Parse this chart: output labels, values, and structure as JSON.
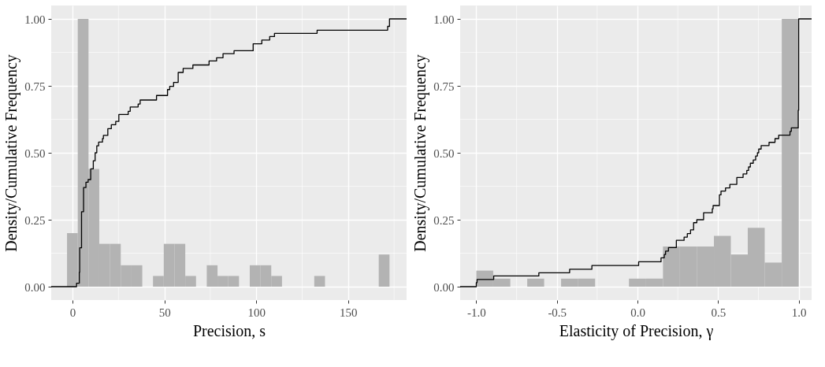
{
  "chart_data": [
    {
      "type": "histogram",
      "xlabel": "Precision, s",
      "ylabel": "Density/Cumulative Frequency",
      "xlim": [
        -11.6,
        181.8
      ],
      "xticks": [
        0,
        50,
        100,
        150
      ],
      "ylim": [
        -0.05,
        1.05
      ],
      "yticks": [
        {
          "value": 0,
          "label": "0.00"
        },
        {
          "value": 0.25,
          "label": "0.25"
        },
        {
          "value": 0.5,
          "label": "0.50"
        },
        {
          "value": 0.75,
          "label": "0.75"
        },
        {
          "value": 1,
          "label": "1.00"
        }
      ],
      "grid": true,
      "series": [
        {
          "type": "histogram",
          "color": "#b3b3b3",
          "bins": [
            -3.0,
            2.85,
            8.7,
            14.55,
            20.4,
            26.25,
            32.1,
            37.95,
            43.8,
            49.65,
            55.5,
            61.35,
            67.2,
            73.05,
            78.9,
            84.75,
            90.6,
            96.45,
            102.3,
            108.15,
            114.0,
            119.85,
            125.7,
            131.55,
            137.4,
            143.25,
            149.1,
            154.95,
            160.8,
            166.65,
            172.5
          ],
          "values": [
            0.2,
            1.0,
            0.44,
            0.16,
            0.16,
            0.08,
            0.08,
            0,
            0.04,
            0.16,
            0.16,
            0.04,
            0,
            0.08,
            0.04,
            0.04,
            0,
            0.08,
            0.08,
            0.04,
            0,
            0,
            0,
            0.04,
            0,
            0,
            0,
            0,
            0,
            0.12
          ]
        },
        {
          "type": "step",
          "color": "#000000",
          "x": [
            -11.6,
            2.2,
            3.7,
            3.9,
            4.9,
            6.0,
            7.3,
            8.5,
            9.9,
            11.3,
            12.3,
            13.2,
            14.2,
            16.3,
            16.8,
            19.2,
            21.1,
            23.5,
            25.2,
            30.3,
            31.4,
            35.7,
            36.8,
            45.7,
            51.7,
            52.9,
            55.0,
            57.5,
            60.2,
            65.5,
            74.3,
            78.4,
            81.9,
            87.9,
            98.3,
            103.0,
            107.3,
            109.9,
            133.1,
            171.5,
            172.5,
            181.8
          ],
          "values": [
            0,
            0.013,
            0.054,
            0.145,
            0.28,
            0.37,
            0.39,
            0.4,
            0.44,
            0.47,
            0.5,
            0.526,
            0.54,
            0.553,
            0.565,
            0.59,
            0.605,
            0.617,
            0.643,
            0.655,
            0.671,
            0.682,
            0.697,
            0.714,
            0.736,
            0.748,
            0.763,
            0.8,
            0.815,
            0.828,
            0.843,
            0.855,
            0.87,
            0.881,
            0.907,
            0.921,
            0.934,
            0.946,
            0.958,
            0.972,
            1.0,
            1.0
          ]
        }
      ]
    },
    {
      "type": "histogram",
      "xlabel": "Elasticity of Precision, γ",
      "ylabel": "Density/Cumulative Frequency",
      "xlim": [
        -1.1,
        1.08
      ],
      "xticks": [
        {
          "value": -1,
          "label": "-1.0"
        },
        {
          "value": -0.5,
          "label": "-0.5"
        },
        {
          "value": 0,
          "label": "0.0"
        },
        {
          "value": 0.5,
          "label": "0.5"
        },
        {
          "value": 1,
          "label": "1.0"
        }
      ],
      "ylim": [
        -0.05,
        1.05
      ],
      "yticks": [
        {
          "value": 0,
          "label": "0.00"
        },
        {
          "value": 0.25,
          "label": "0.25"
        },
        {
          "value": 0.5,
          "label": "0.50"
        },
        {
          "value": 0.75,
          "label": "0.75"
        },
        {
          "value": 1,
          "label": "1.00"
        }
      ],
      "grid": true,
      "series": [
        {
          "type": "histogram",
          "color": "#b3b3b3",
          "bins": [
            -1.0,
            -0.895,
            -0.789,
            -0.684,
            -0.579,
            -0.474,
            -0.368,
            -0.263,
            -0.158,
            -0.053,
            0.053,
            0.158,
            0.263,
            0.368,
            0.474,
            0.579,
            0.684,
            0.789,
            0.895,
            1.0
          ],
          "values": [
            0.06,
            0.03,
            0,
            0.03,
            0,
            0.03,
            0.03,
            0,
            0,
            0.03,
            0.03,
            0.15,
            0.15,
            0.15,
            0.19,
            0.12,
            0.22,
            0.09,
            1.0
          ]
        },
        {
          "type": "step",
          "color": "#000000",
          "x": [
            -1.1,
            -1.0,
            -0.995,
            -0.892,
            -0.612,
            -0.421,
            -0.283,
            0.007,
            0.146,
            0.166,
            0.174,
            0.192,
            0.241,
            0.289,
            0.309,
            0.329,
            0.348,
            0.368,
            0.41,
            0.464,
            0.469,
            0.508,
            0.518,
            0.546,
            0.573,
            0.616,
            0.655,
            0.678,
            0.689,
            0.7,
            0.718,
            0.733,
            0.744,
            0.752,
            0.767,
            0.816,
            0.853,
            0.876,
            0.946,
            0.954,
            0.997,
            1.0,
            1.08
          ],
          "values": [
            0,
            0.015,
            0.027,
            0.04,
            0.052,
            0.065,
            0.079,
            0.093,
            0.108,
            0.12,
            0.133,
            0.146,
            0.173,
            0.185,
            0.198,
            0.212,
            0.239,
            0.25,
            0.276,
            0.291,
            0.303,
            0.343,
            0.357,
            0.369,
            0.382,
            0.408,
            0.421,
            0.434,
            0.447,
            0.461,
            0.473,
            0.488,
            0.5,
            0.514,
            0.527,
            0.539,
            0.553,
            0.566,
            0.58,
            0.593,
            0.659,
            1.0,
            1.0
          ]
        }
      ]
    }
  ]
}
